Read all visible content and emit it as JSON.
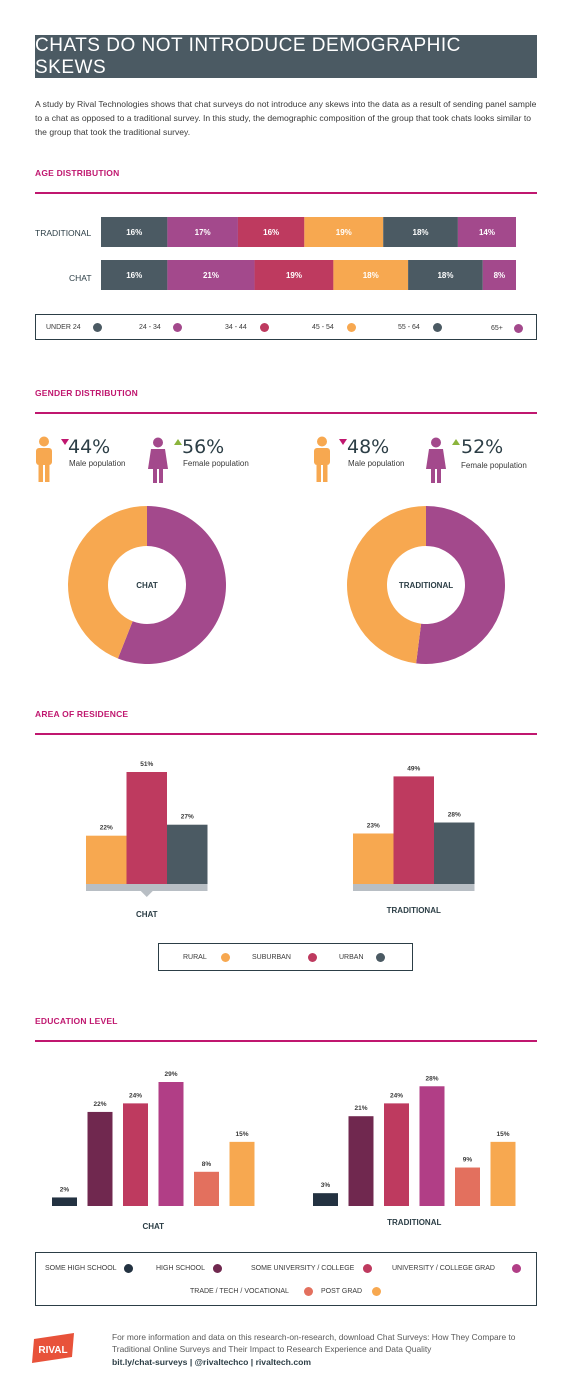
{
  "header": {
    "title": "CHATS DO NOT INTRODUCE DEMOGRAPHIC SKEWS"
  },
  "intro": "A study by Rival Technologies shows that chat surveys do not introduce any skews into the data as a result of sending panel sample to a chat as opposed to a traditional survey. In this study, the demographic composition of the group that took chats looks similar to the group that took the traditional survey.",
  "sections": {
    "age": "AGE DISTRIBUTION",
    "gender": "GENDER DISTRIBUTION",
    "residence": "AREA OF RESIDENCE",
    "education": "EDUCATION LEVEL"
  },
  "colors": {
    "slate": "#4b5a63",
    "purple": "#a3498c",
    "crimson": "#be3a5f",
    "orange": "#f7a850",
    "navy": "#233241",
    "plum": "#70284f",
    "magenta": "#b13e86",
    "salmon": "#e3705e",
    "accent": "#c0176f"
  },
  "icons": {
    "male": "male-person-icon",
    "female": "female-person-icon",
    "down": "down-triangle-icon",
    "up": "up-triangle-icon"
  },
  "chart_data": [
    {
      "type": "bar",
      "title": "AGE DISTRIBUTION",
      "stacked": true,
      "orientation": "horizontal",
      "categories": [
        "TRADITIONAL",
        "CHAT"
      ],
      "series": [
        {
          "name": "UNDER 24",
          "values": [
            16,
            16
          ],
          "labels": [
            "16%",
            "16%"
          ],
          "color": "#4b5a63"
        },
        {
          "name": "24 - 34",
          "values": [
            17,
            21
          ],
          "labels": [
            "17%",
            "21%"
          ],
          "color": "#a3498c"
        },
        {
          "name": "34 - 44",
          "values": [
            16,
            19
          ],
          "labels": [
            "16%",
            "19%"
          ],
          "color": "#be3a5f"
        },
        {
          "name": "45 - 54",
          "values": [
            19,
            18
          ],
          "labels": [
            "19%",
            "18%"
          ],
          "color": "#f7a850"
        },
        {
          "name": "55 - 64",
          "values": [
            18,
            18
          ],
          "labels": [
            "18%",
            "18%"
          ],
          "color": "#4b5a63"
        },
        {
          "name": "65+",
          "values": [
            14,
            8
          ],
          "labels": [
            "14%",
            "8%"
          ],
          "color": "#a3498c"
        }
      ]
    },
    {
      "type": "pie",
      "title": "GENDER DISTRIBUTION",
      "charts": [
        {
          "center_label": "CHAT",
          "male": {
            "value": 44,
            "label": "44%",
            "text": "Male population"
          },
          "female": {
            "value": 56,
            "label": "56%",
            "text": "Female population"
          }
        },
        {
          "center_label": "TRADITIONAL",
          "male": {
            "value": 48,
            "label": "48%",
            "text": "Male population"
          },
          "female": {
            "value": 52,
            "label": "52%",
            "text": "Female population"
          }
        }
      ],
      "colors": {
        "male": "#f7a850",
        "female": "#a3498c"
      }
    },
    {
      "type": "bar",
      "title": "AREA OF RESIDENCE",
      "categories": [
        "RURAL",
        "SUBURBAN",
        "URBAN"
      ],
      "colors": [
        "#f7a850",
        "#be3a5f",
        "#4b5a63"
      ],
      "groups": [
        {
          "name": "CHAT",
          "values": [
            22,
            51,
            27
          ],
          "labels": [
            "22%",
            "51%",
            "27%"
          ]
        },
        {
          "name": "TRADITIONAL",
          "values": [
            23,
            49,
            28
          ],
          "labels": [
            "23%",
            "49%",
            "28%"
          ]
        }
      ]
    },
    {
      "type": "bar",
      "title": "EDUCATION LEVEL",
      "categories": [
        "SOME HIGH SCHOOL",
        "HIGH SCHOOL",
        "SOME UNIVERSITY / COLLEGE",
        "UNIVERSITY / COLLEGE GRAD",
        "TRADE / TECH / VOCATIONAL",
        "POST GRAD"
      ],
      "colors": [
        "#233241",
        "#70284f",
        "#be3a5f",
        "#b13e86",
        "#e3705e",
        "#f7a850"
      ],
      "groups": [
        {
          "name": "CHAT",
          "values": [
            2,
            22,
            24,
            29,
            8,
            15
          ],
          "labels": [
            "2%",
            "22%",
            "24%",
            "29%",
            "8%",
            "15%"
          ]
        },
        {
          "name": "TRADITIONAL",
          "values": [
            3,
            21,
            24,
            28,
            9,
            15
          ],
          "labels": [
            "3%",
            "21%",
            "24%",
            "28%",
            "9%",
            "15%"
          ]
        }
      ]
    }
  ],
  "footer": {
    "logo": "RIVAL",
    "text": "For more information and data on this research-on-research, download Chat Surveys: How They Compare to Traditional Online Surveys and Their Impact to Research Experience and Data Quality",
    "links": "bit.ly/chat-surveys  |  @rivaltechco  |  rivaltech.com"
  }
}
